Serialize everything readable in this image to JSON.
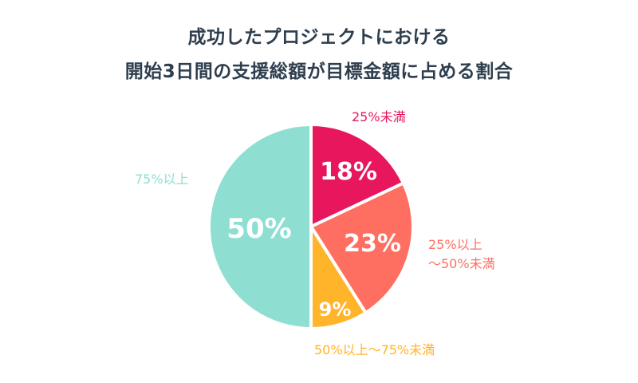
{
  "title": {
    "line1": "成功したプロジェクトにおける",
    "line2": "開始3日間の支援総額が目標金額に占める割合"
  },
  "labels": {
    "under25": "25%未満",
    "from25to50_line1": "25%以上",
    "from25to50_line2": "～50%未満",
    "from50to75": "50%以上～75%未満",
    "over75": "75%以上"
  },
  "slice_labels": {
    "under25": "18%",
    "from25to50": "23%",
    "from50to75": "9%",
    "over75": "50%"
  },
  "colors": {
    "under25": "#e8175d",
    "from25to50": "#ff6f61",
    "from50to75": "#ffb42a",
    "over75": "#8eded2",
    "title": "#2e3e4e"
  },
  "chart_data": {
    "type": "pie",
    "title": "成功したプロジェクトにおける開始3日間の支援総額が目標金額に占める割合",
    "categories": [
      "25%未満",
      "25%以上～50%未満",
      "50%以上～75%未満",
      "75%以上"
    ],
    "values": [
      18,
      23,
      9,
      50
    ],
    "unit": "%",
    "colors": [
      "#e8175d",
      "#ff6f61",
      "#ffb42a",
      "#8eded2"
    ],
    "start_angle": "12 o'clock",
    "direction": "clockwise",
    "legend": "none (category labels placed outside slices)"
  }
}
